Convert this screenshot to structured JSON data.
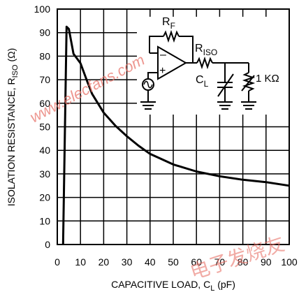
{
  "chart_data": {
    "type": "line",
    "xlabel": "CAPACITIVE LOAD, C",
    "xlabel_sub": "L",
    "xlabel_unit": " (pF)",
    "ylabel": "ISOLATION RESISTANCE, R",
    "ylabel_sub": "ISO",
    "ylabel_unit": " (Ω)",
    "xlim": [
      0,
      100
    ],
    "ylim": [
      0,
      100
    ],
    "x_ticks": [
      0,
      10,
      20,
      30,
      40,
      50,
      60,
      70,
      80,
      90,
      100
    ],
    "y_ticks": [
      0,
      10,
      20,
      30,
      40,
      50,
      60,
      70,
      80,
      90,
      100
    ],
    "grid": true,
    "series": [
      {
        "x": [
          2.5,
          4,
          5,
          7,
          10,
          13,
          15,
          20,
          25,
          30,
          35,
          40,
          50,
          60,
          70,
          80,
          90,
          100
        ],
        "y": [
          0,
          92.5,
          91.5,
          81,
          77,
          69,
          64,
          56,
          50.5,
          46,
          42,
          38.5,
          34,
          31,
          29,
          27.5,
          26.5,
          25
        ]
      }
    ],
    "inset_circuit": {
      "rf_label": "R",
      "rf_sub": "F",
      "riso_label": "R",
      "riso_sub": "ISO",
      "cl_label": "C",
      "cl_sub": "L",
      "load_label": "1 KΩ",
      "minus_sign": "–",
      "plus_sign": "+"
    }
  },
  "watermarks": {
    "site": "www.elecfans.com",
    "cn": "电子发烧友"
  }
}
